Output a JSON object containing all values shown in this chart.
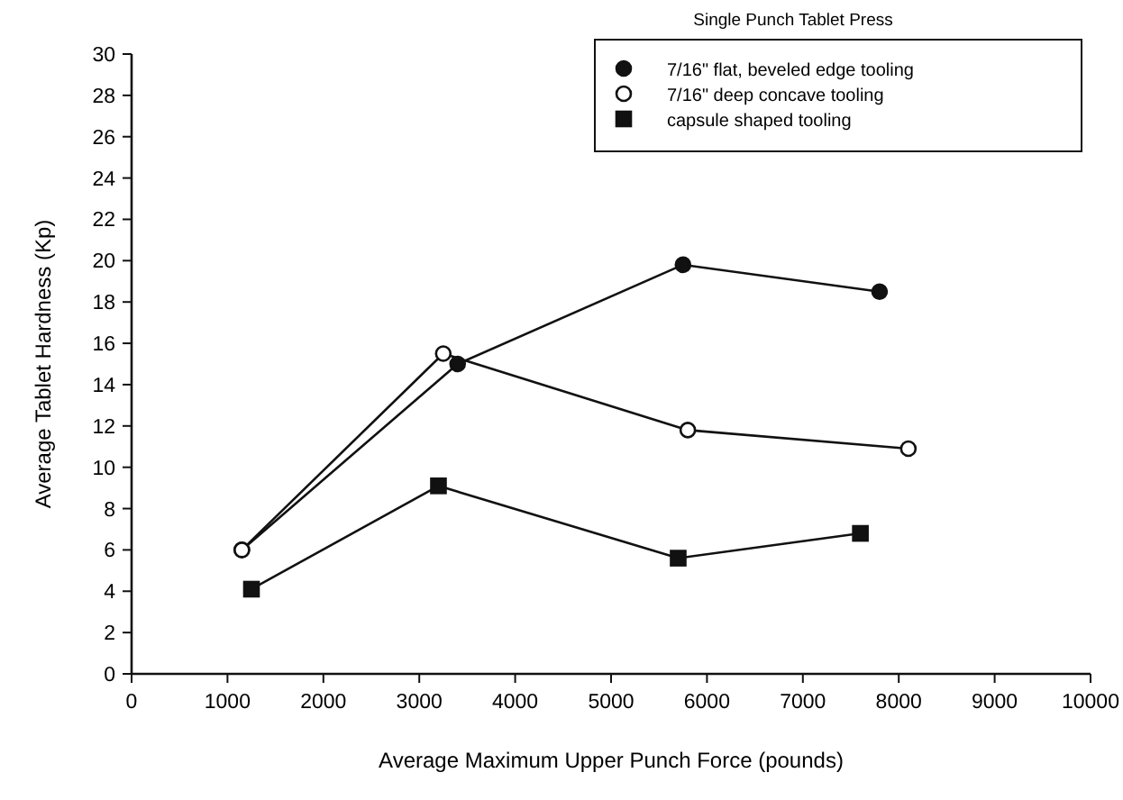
{
  "chart_data": {
    "type": "line",
    "legend_title": "Single Punch Tablet Press",
    "xlabel": "Average Maximum Upper Punch Force (pounds)",
    "ylabel": "Average Tablet Hardness (Kp)",
    "xlim": [
      0,
      10000
    ],
    "xticks": [
      0,
      1000,
      2000,
      3000,
      4000,
      5000,
      6000,
      7000,
      8000,
      9000,
      10000
    ],
    "ylim": [
      0,
      30
    ],
    "yticks": [
      0,
      2,
      4,
      6,
      8,
      10,
      12,
      14,
      16,
      18,
      20,
      22,
      24,
      26,
      28,
      30
    ],
    "grid": false,
    "legend": "top right",
    "line_style": "solid",
    "series": [
      {
        "name": "7/16\" flat, beveled edge tooling",
        "color": "#111111",
        "marker": "circle",
        "x": [
          1150,
          3400,
          5750,
          7800
        ],
        "values": [
          6,
          15,
          19.8,
          18.5
        ]
      },
      {
        "name": "7/16\" deep concave tooling",
        "color": "#111111",
        "marker": "circle",
        "colors": [
          "#ffffff",
          "#ffffff",
          "#ffffff",
          "#ffffff"
        ],
        "x": [
          1150,
          3250,
          5800,
          8100
        ],
        "values": [
          6,
          15.5,
          11.8,
          10.9
        ]
      },
      {
        "name": "capsule shaped tooling",
        "color": "#111111",
        "marker": "square",
        "x": [
          1250,
          3200,
          5700,
          7600
        ],
        "values": [
          4.1,
          9.1,
          5.6,
          6.8
        ]
      }
    ]
  }
}
